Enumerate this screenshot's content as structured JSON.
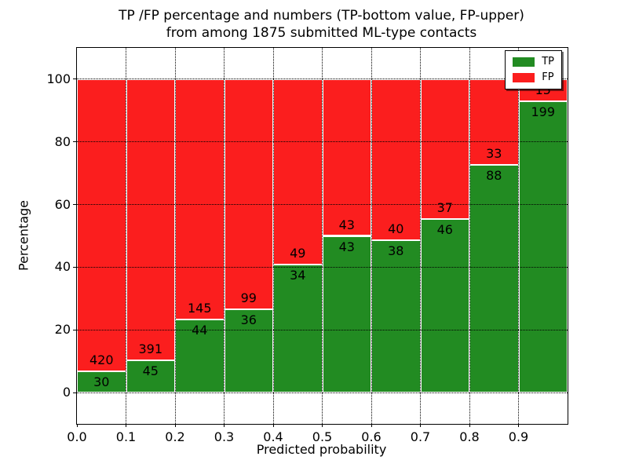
{
  "title": {
    "line1": "TP /FP percentage and numbers (TP-bottom value, FP-upper)",
    "line2": "from among 1875 submitted ML-type contacts"
  },
  "axes": {
    "xlabel": "Predicted probability",
    "ylabel": "Percentage"
  },
  "legend": {
    "items": [
      {
        "label": "TP",
        "color": "#228b22"
      },
      {
        "label": "FP",
        "color": "#fb1e1e"
      }
    ],
    "position": "upper right"
  },
  "chart_data": {
    "type": "bar",
    "stacked": true,
    "normalized": "each bin stacked to 100%",
    "title": "TP /FP percentage and numbers (TP-bottom value, FP-upper) from among 1875 submitted ML-type contacts",
    "xlabel": "Predicted probability",
    "ylabel": "Percentage",
    "total_submitted": 1875,
    "bin_width": 0.1,
    "categories": [
      "0.0-0.1",
      "0.1-0.2",
      "0.2-0.3",
      "0.3-0.4",
      "0.4-0.5",
      "0.5-0.6",
      "0.6-0.7",
      "0.7-0.8",
      "0.8-0.9",
      "0.9-1.0"
    ],
    "series": [
      {
        "name": "TP",
        "color": "#228b22",
        "counts": [
          30,
          45,
          44,
          36,
          34,
          43,
          38,
          46,
          88,
          199
        ],
        "percent": [
          6.7,
          10.3,
          23.3,
          26.7,
          41.0,
          50.0,
          48.7,
          55.4,
          72.7,
          93.0
        ]
      },
      {
        "name": "FP",
        "color": "#fb1e1e",
        "counts": [
          420,
          391,
          145,
          99,
          49,
          43,
          40,
          37,
          33,
          15
        ],
        "percent": [
          93.3,
          89.7,
          76.7,
          73.3,
          59.0,
          50.0,
          51.3,
          44.6,
          27.3,
          7.0
        ]
      }
    ],
    "bar_edge_color": "#ffffff",
    "axes": {
      "xlim": [
        0,
        1
      ],
      "ylim": [
        -10,
        110
      ],
      "xticks": [
        0,
        0.1,
        0.2,
        0.3,
        0.4,
        0.5,
        0.6,
        0.7,
        0.8,
        0.9
      ],
      "xtick_labels": [
        "0.0",
        "0.1",
        "0.2",
        "0.3",
        "0.4",
        "0.5",
        "0.6",
        "0.7",
        "0.8",
        "0.9"
      ],
      "yticks": [
        0,
        20,
        40,
        60,
        80,
        100
      ],
      "grid": "dotted, both axes"
    },
    "legend_position": "upper right"
  }
}
